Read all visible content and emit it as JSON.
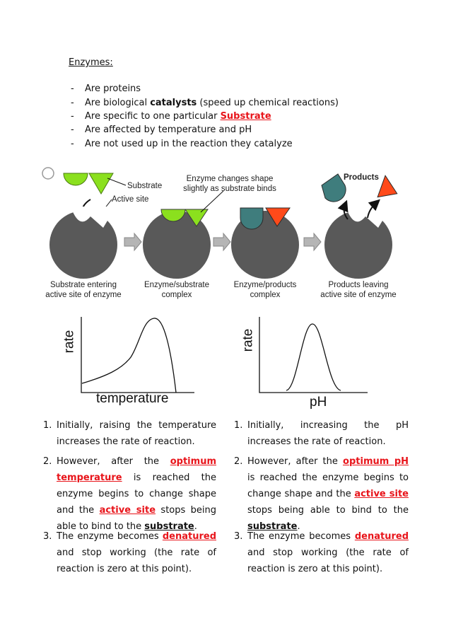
{
  "header": {
    "title": "Enzymes:"
  },
  "bullets": [
    {
      "marker": "-",
      "segments": [
        "Are proteins"
      ]
    },
    {
      "marker": "-",
      "segments": [
        "Are biological ",
        "catalysts",
        " (speed up chemical reactions)"
      ]
    },
    {
      "marker": "-",
      "segments": [
        "Are specific to one particular ",
        "Substrate"
      ]
    },
    {
      "marker": "-",
      "segments": [
        "Are affected by temperature and pH"
      ]
    },
    {
      "marker": "-",
      "segments": [
        "Are not used up in the reaction they catalyze"
      ]
    }
  ],
  "diagram": {
    "labels": {
      "substrate": "Substrate",
      "active_site": "Active site",
      "shape_change": [
        "Enzyme changes shape",
        "slightly as substrate binds"
      ],
      "products": "Products"
    },
    "captions": [
      [
        "Substrate entering",
        "active site of enzyme"
      ],
      [
        "Enzyme/substrate",
        "complex"
      ],
      [
        "Enzyme/products",
        "complex"
      ],
      [
        "Products leaving",
        "active site of enzyme"
      ]
    ]
  },
  "graphs": [
    {
      "y_label": "rate",
      "x_label": "temperature"
    },
    {
      "y_label": "rate",
      "x_label": "pH"
    }
  ],
  "columns": [
    [
      {
        "marker": "1.",
        "segments": [
          "Initially, raising the temperature increases the rate of reaction."
        ]
      },
      {
        "marker": "2.",
        "segments": [
          "However, after the ",
          "optimum temperature",
          " is reached the enzyme begins to change shape and the ",
          "active site",
          " stops being able to bind to the ",
          "substrate",
          "."
        ]
      },
      {
        "marker": "3.",
        "segments": [
          "The enzyme becomes ",
          "denatured",
          " and stop working (the rate of reaction is zero at this point)."
        ]
      }
    ],
    [
      {
        "marker": "1.",
        "segments": [
          "Initially, increasing the pH increases the rate of reaction."
        ]
      },
      {
        "marker": "2.",
        "segments": [
          "However, after the ",
          "optimum pH",
          " is reached the enzyme begins to change shape and the ",
          "active site",
          " stops being able to bind to the ",
          "substrate",
          "."
        ]
      },
      {
        "marker": "3.",
        "segments": [
          "The enzyme becomes ",
          "denatured",
          " and stop working (the rate of reaction is zero at this point)."
        ]
      }
    ]
  ]
}
